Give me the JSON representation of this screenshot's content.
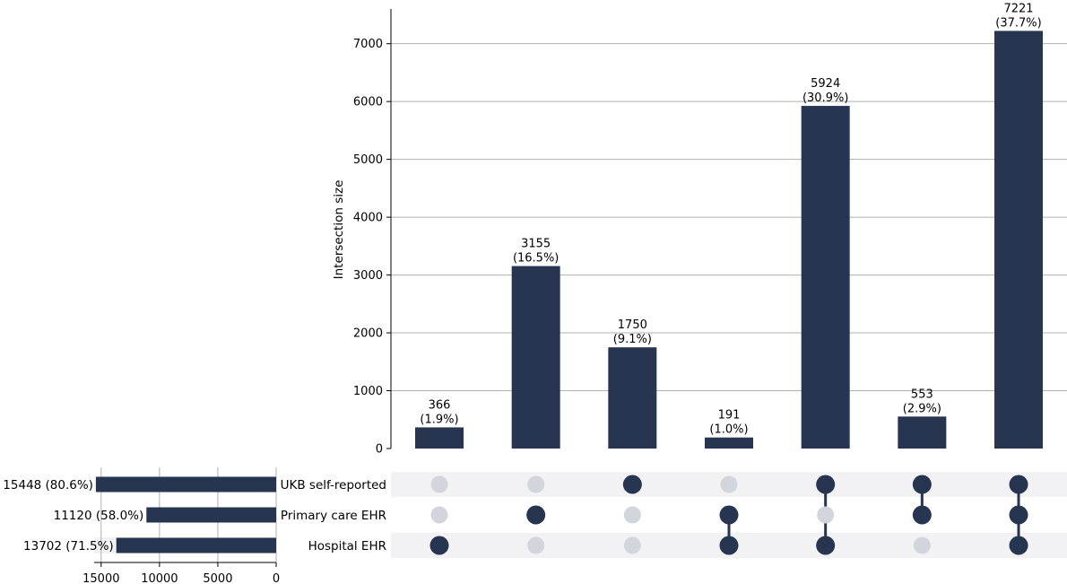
{
  "chart_data": {
    "type": "upset",
    "title": "",
    "ylabel": "Intersection size",
    "ylim": [
      0,
      7600
    ],
    "yticks": [
      0,
      1000,
      2000,
      3000,
      4000,
      5000,
      6000,
      7000
    ],
    "grid": true,
    "sets": [
      {
        "name": "UKB self-reported",
        "size": 15448,
        "size_label": "15448 (80.6%)"
      },
      {
        "name": "Primary care EHR",
        "size": 11120,
        "size_label": "11120 (58.0%)"
      },
      {
        "name": "Hospital EHR",
        "size": 13702,
        "size_label": "13702 (71.5%)"
      }
    ],
    "set_size_axis": {
      "xlim": [
        0,
        15600
      ],
      "ticks": [
        15000,
        10000,
        5000,
        0
      ]
    },
    "intersections": [
      {
        "members": [
          "Hospital EHR"
        ],
        "value": 366,
        "percent": "(1.9%)"
      },
      {
        "members": [
          "Primary care EHR"
        ],
        "value": 3155,
        "percent": "(16.5%)"
      },
      {
        "members": [
          "UKB self-reported"
        ],
        "value": 1750,
        "percent": "(9.1%)"
      },
      {
        "members": [
          "Primary care EHR",
          "Hospital EHR"
        ],
        "value": 191,
        "percent": "(1.0%)"
      },
      {
        "members": [
          "UKB self-reported",
          "Hospital EHR"
        ],
        "value": 5924,
        "percent": "(30.9%)"
      },
      {
        "members": [
          "UKB self-reported",
          "Primary care EHR"
        ],
        "value": 553,
        "percent": "(2.9%)"
      },
      {
        "members": [
          "UKB self-reported",
          "Primary care EHR",
          "Hospital EHR"
        ],
        "value": 7221,
        "percent": "(37.7%)"
      }
    ],
    "colors": {
      "bar": "#273551",
      "dot_inactive": "#d3d5dc",
      "grid": "#b0b0b0",
      "stripe": "#f2f2f5"
    }
  }
}
